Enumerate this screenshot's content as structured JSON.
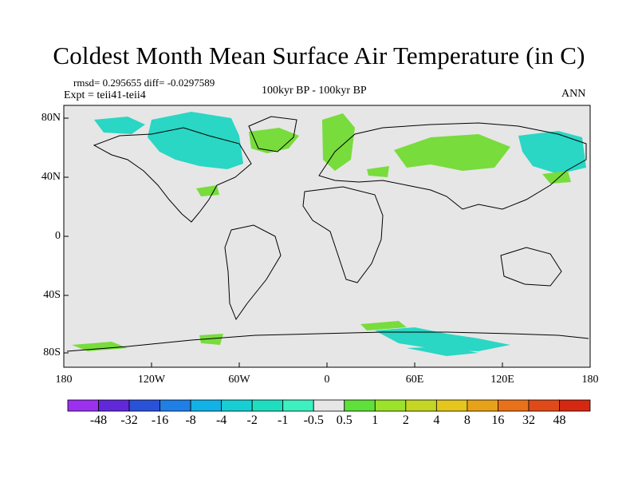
{
  "title": "Coldest Month Mean Surface Air Temperature (in C)",
  "stats_line": "rmsd= 0.295655 diff= -0.0297589",
  "experiment": "Expt = teii41-teii4",
  "period": "100kyr BP - 100kyr BP",
  "season": "ANN",
  "lat_ticks": [
    "80N",
    "40N",
    "0",
    "40S",
    "80S"
  ],
  "lon_ticks": [
    "180",
    "120W",
    "60W",
    "0",
    "60E",
    "120E",
    "180"
  ],
  "colorbar": {
    "labels": [
      "-48",
      "-32",
      "-16",
      "-8",
      "-4",
      "-2",
      "-1",
      "-0.5",
      "0.5",
      "1",
      "2",
      "4",
      "8",
      "16",
      "32",
      "48"
    ],
    "colors": [
      "#9b30ef",
      "#6028d8",
      "#2a52d9",
      "#1f7fe6",
      "#12b2e9",
      "#17cfd3",
      "#1fdec0",
      "#3cf0c0",
      "#e6e6e6",
      "#5fe03a",
      "#9ce22a",
      "#c4d623",
      "#e4c61e",
      "#e8a21a",
      "#e8711a",
      "#e04a18",
      "#d42812"
    ]
  },
  "colors": {
    "background_field": "#e6e6e6",
    "cool_anomaly": "#2ad6c4",
    "warm_anomaly": "#78dc3c",
    "coast": "#000000"
  }
}
